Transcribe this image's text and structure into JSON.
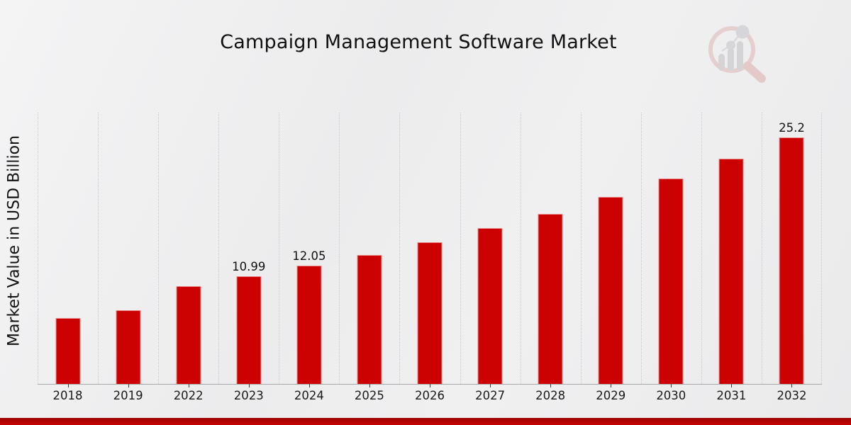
{
  "chart_data": {
    "type": "bar",
    "title": "Campaign Management Software Market",
    "xlabel": "",
    "ylabel": "Market Value in USD Billion",
    "categories": [
      "2018",
      "2019",
      "2022",
      "2023",
      "2024",
      "2025",
      "2026",
      "2027",
      "2028",
      "2029",
      "2030",
      "2031",
      "2032"
    ],
    "values": [
      6.7,
      7.5,
      10.0,
      10.99,
      12.05,
      13.2,
      14.5,
      15.9,
      17.4,
      19.1,
      21.0,
      23.0,
      25.2
    ],
    "point_labels": [
      "",
      "",
      "",
      "10.99",
      "12.05",
      "",
      "",
      "",
      "",
      "",
      "",
      "",
      "25.2"
    ],
    "ylim": [
      0,
      28
    ],
    "grid": "vertical category separators, dotted",
    "legend": "none",
    "bar_color": "#cc0202"
  },
  "colors": {
    "bar": "#cc0202",
    "bottom_strip_top": "#9d0404",
    "bottom_strip_bottom": "#c70404",
    "background": "#ededee",
    "gridline": "#c7c7ca",
    "axis_line": "#a9a9ac"
  },
  "logo": {
    "icon": "magnifier-bar-chart-logo"
  }
}
